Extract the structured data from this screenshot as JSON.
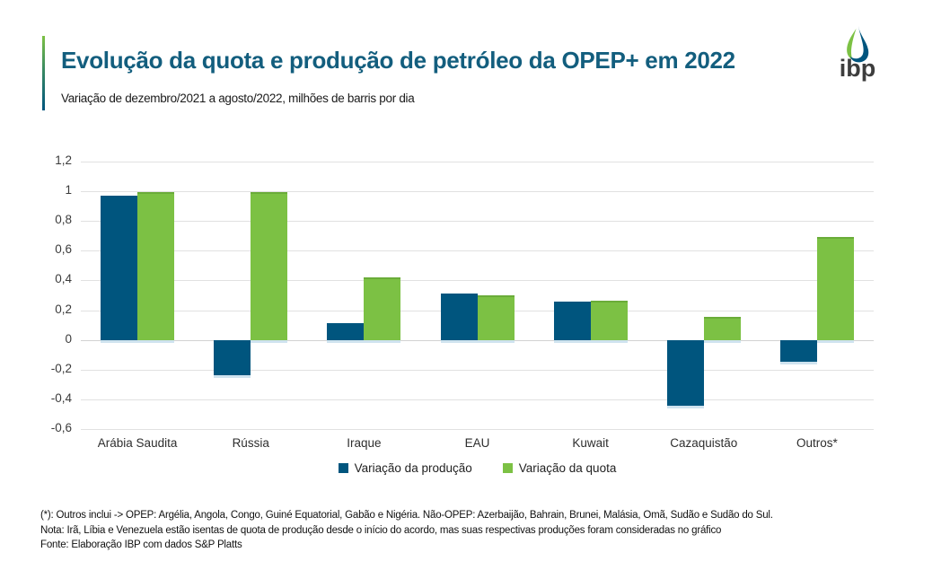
{
  "header": {
    "title": "Evolução da quota e produção de petróleo da OPEP+ em 2022",
    "subtitle": "Variação de dezembro/2021 a agosto/2022, milhões de barris por dia",
    "logo_text": "ibp"
  },
  "chart_data": {
    "type": "bar",
    "title": "Evolução da quota e produção de petróleo da OPEP+ em 2022",
    "subtitle": "Variação de dezembro/2021 a agosto/2022, milhões de barris por dia",
    "categories": [
      "Arábia Saudita",
      "Rússia",
      "Iraque",
      "EAU",
      "Kuwait",
      "Cazaquistão",
      "Outros*"
    ],
    "series": [
      {
        "name": "Variação da produção",
        "color": "#00557e",
        "values": [
          0.97,
          -0.24,
          0.11,
          0.31,
          0.26,
          -0.44,
          -0.15
        ]
      },
      {
        "name": "Variação da quota",
        "color": "#7cc144",
        "values": [
          0.98,
          0.98,
          0.41,
          0.29,
          0.25,
          0.14,
          0.68
        ]
      }
    ],
    "ylim": [
      -0.6,
      1.2
    ],
    "ytick_step": 0.2,
    "ytick_labels": [
      "1,2",
      "1",
      "0,8",
      "0,6",
      "0,4",
      "0,2",
      "0",
      "-0,2",
      "-0,4",
      "-0,6"
    ],
    "grid": true,
    "legend_position": "bottom",
    "unit": "milhões de barris por dia"
  },
  "footnotes": [
    "(*):  Outros inclui -> OPEP: Argélia, Angola, Congo, Guiné Equatorial, Gabão e Nigéria. Não-OPEP: Azerbaijão, Bahrain, Brunei, Malásia, Omã, Sudão e Sudão do Sul.",
    "Nota: Irã,  Líbia e Venezuela estão isentas de quota de produção desde o início do acordo, mas suas respectivas produções foram consideradas no gráfico",
    "Fonte: Elaboração IBP com dados S&P Platts"
  ],
  "colors": {
    "producao_bar": "#00557e",
    "quota_bar": "#7cc144",
    "title_text": "#135e7e",
    "accent_gradient_top": "#7cc144",
    "accent_gradient_bottom": "#00557e",
    "gridline": "#e1e1e1"
  }
}
